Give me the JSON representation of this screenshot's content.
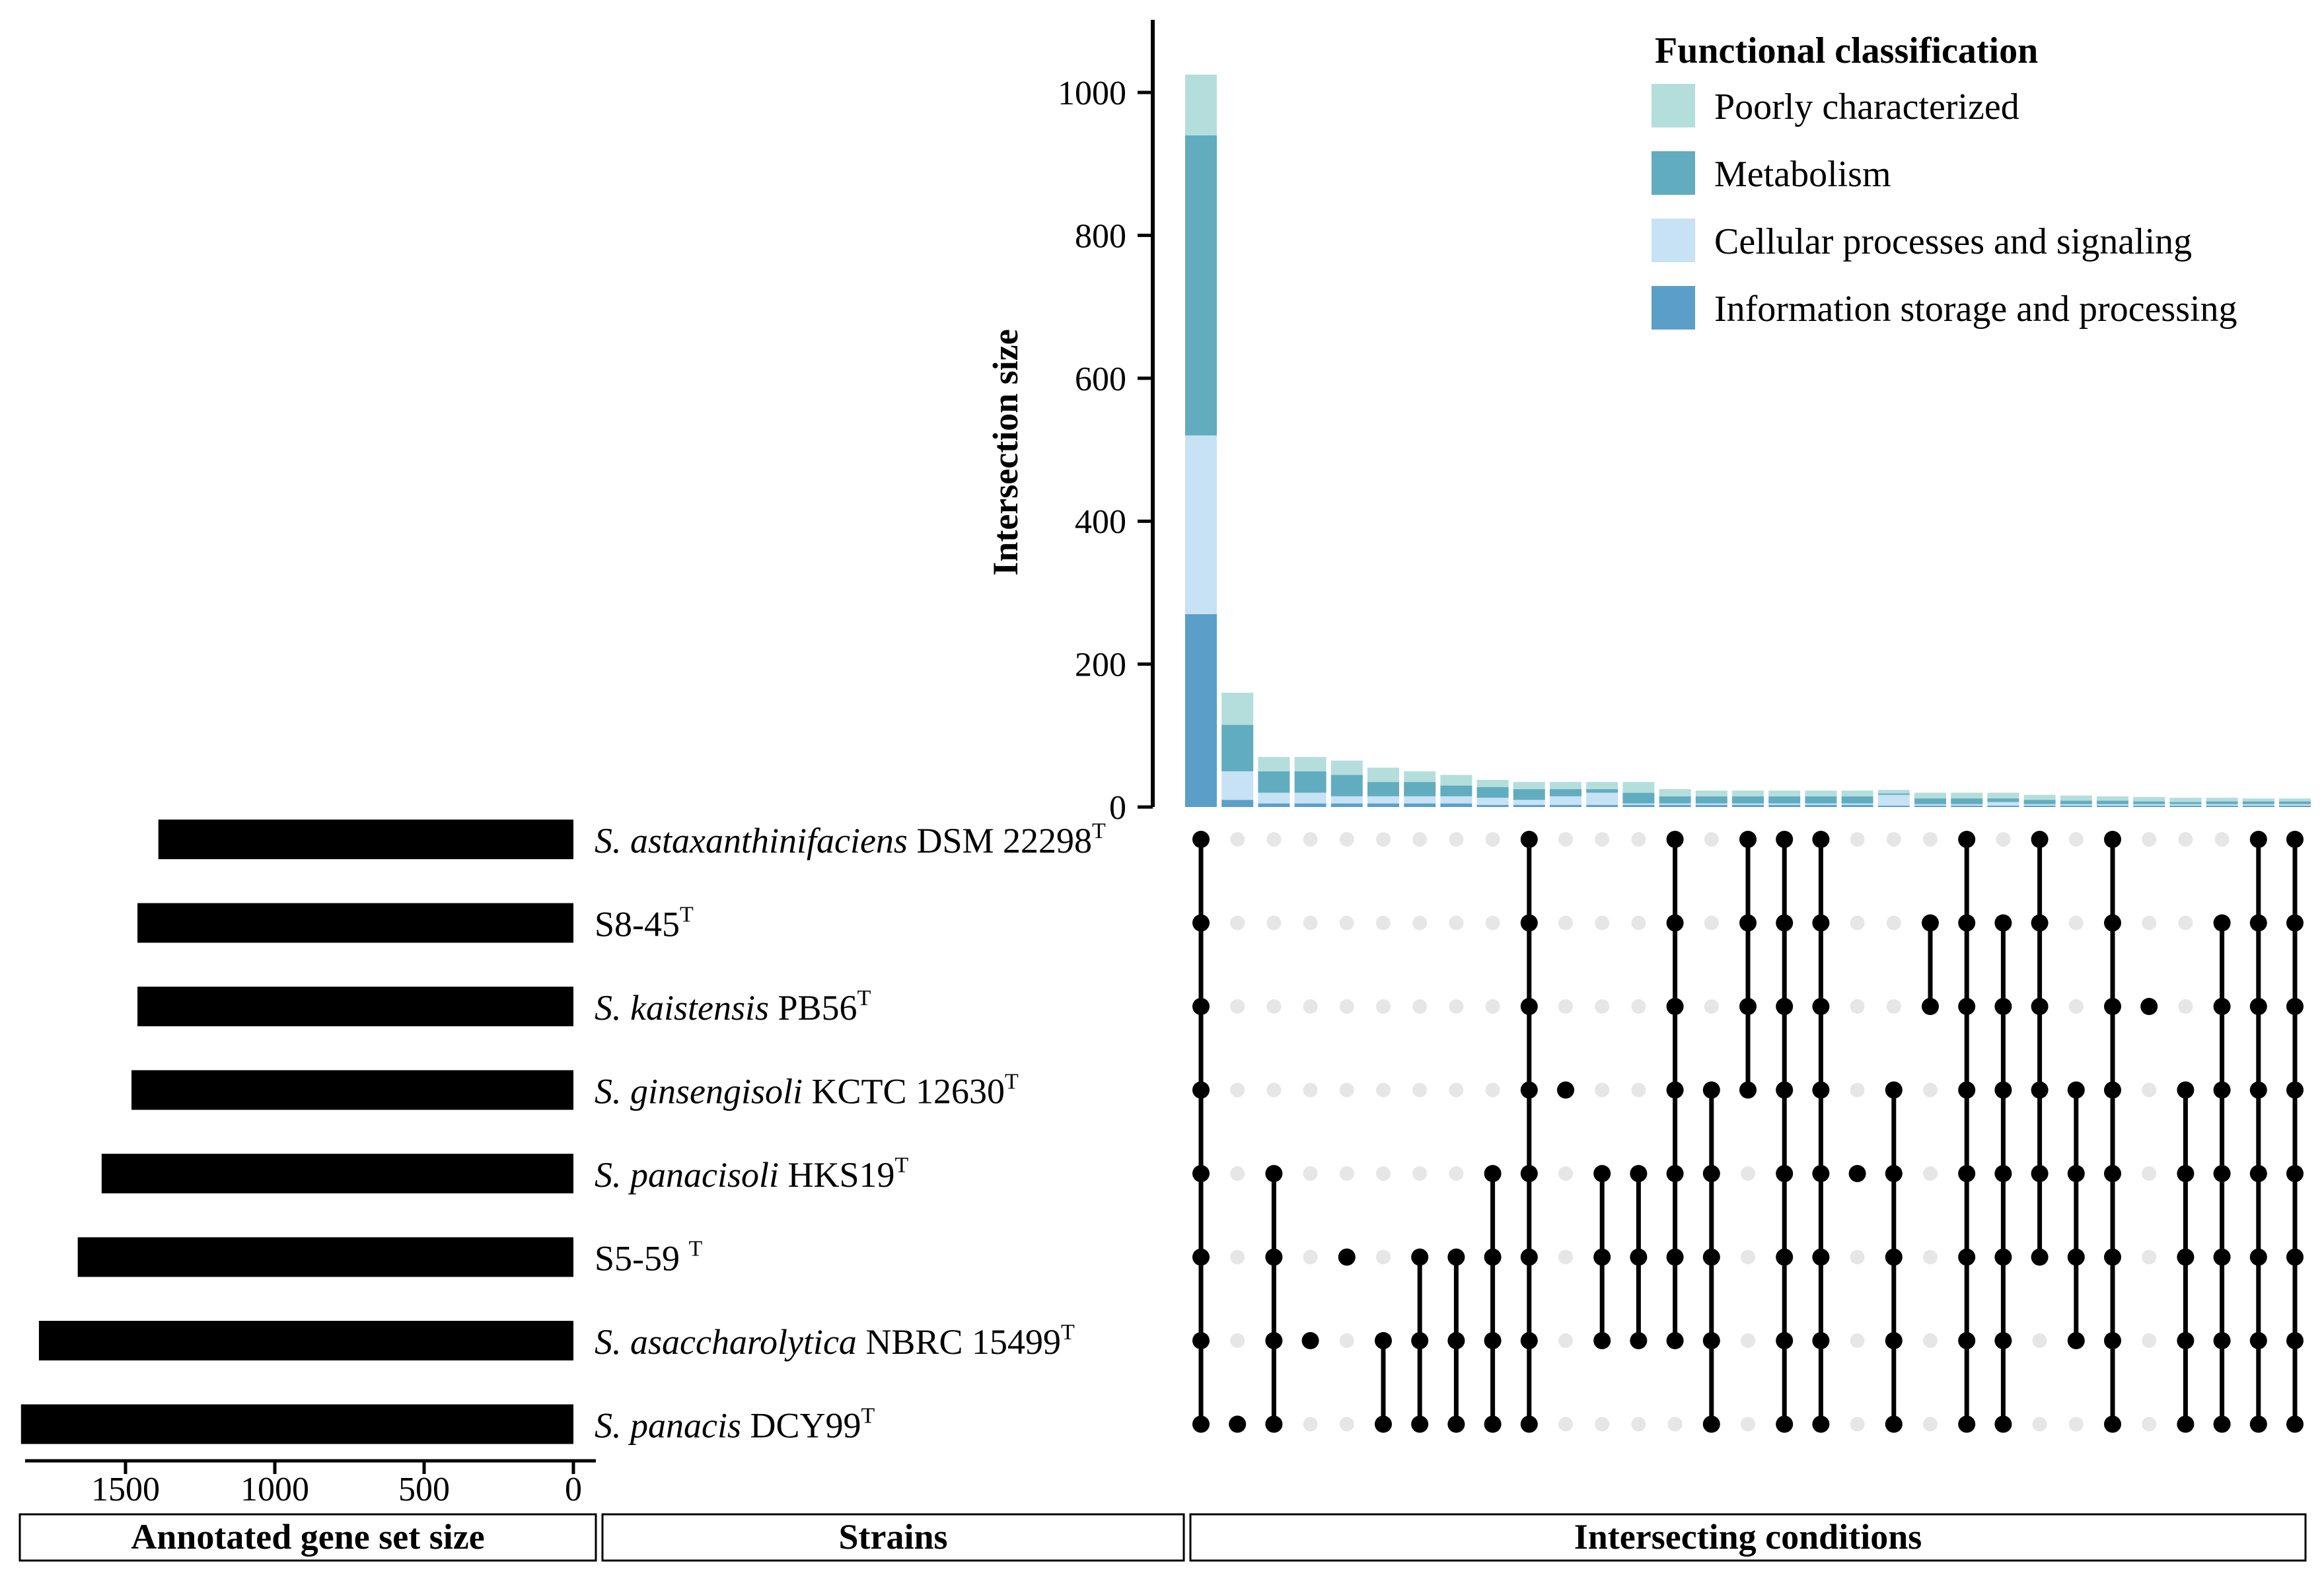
{
  "chart_data": {
    "type": "upset",
    "title": "",
    "legend": {
      "title": "Functional classification",
      "position": "top-right",
      "items": [
        {
          "label": "Poorly characterized",
          "color": "#b4dedb"
        },
        {
          "label": "Metabolism",
          "color": "#62acbf"
        },
        {
          "label": "Cellular processes and signaling",
          "color": "#c7e2f5"
        },
        {
          "label": "Information storage and processing",
          "color": "#5b9fc9"
        }
      ]
    },
    "intersection_axis": {
      "label": "Intersection size",
      "ylim": [
        0,
        1100
      ],
      "ticks": [
        0,
        200,
        400,
        600,
        800,
        1000
      ]
    },
    "set_size_axis": {
      "label": "Annotated gene set size",
      "xlim": [
        0,
        1850
      ],
      "ticks": [
        1500,
        1000,
        500,
        0
      ]
    },
    "panel_labels": {
      "left": "Annotated gene set size",
      "middle": "Strains",
      "right": "Intersecting conditions"
    },
    "sets": [
      {
        "species": "S. astaxanthinifaciens",
        "strain": "DSM 22298",
        "sup": "T",
        "size": 1390
      },
      {
        "species": "",
        "strain": "S8-45",
        "sup": "T",
        "size": 1460
      },
      {
        "species": "S. kaistensis",
        "strain": "PB56",
        "sup": "T",
        "size": 1460
      },
      {
        "species": "S. ginsengisoli",
        "strain": "KCTC 12630",
        "sup": "T",
        "size": 1480
      },
      {
        "species": "S. panacisoli",
        "strain": "HKS19",
        "sup": "T",
        "size": 1580
      },
      {
        "species": "",
        "strain": "S5-59 ",
        "sup": "T",
        "size": 1660
      },
      {
        "species": "S. asaccharolytica",
        "strain": "NBRC 15499",
        "sup": "T",
        "size": 1790
      },
      {
        "species": "S. panacis",
        "strain": "DCY99",
        "sup": "T",
        "size": 1850
      }
    ],
    "series_order": [
      "Information storage and processing",
      "Cellular processes and signaling",
      "Metabolism",
      "Poorly characterized"
    ],
    "intersections": [
      {
        "sets": [
          0,
          1,
          2,
          3,
          4,
          5,
          6,
          7
        ],
        "values": [
          270,
          250,
          420,
          85
        ]
      },
      {
        "sets": [
          7
        ],
        "values": [
          10,
          40,
          65,
          45
        ]
      },
      {
        "sets": [
          4,
          5,
          6,
          7
        ],
        "values": [
          5,
          15,
          30,
          20
        ]
      },
      {
        "sets": [
          6
        ],
        "values": [
          5,
          15,
          30,
          20
        ]
      },
      {
        "sets": [
          5
        ],
        "values": [
          5,
          10,
          30,
          20
        ]
      },
      {
        "sets": [
          6,
          7
        ],
        "values": [
          5,
          10,
          20,
          20
        ]
      },
      {
        "sets": [
          5,
          6,
          7
        ],
        "values": [
          5,
          10,
          20,
          15
        ]
      },
      {
        "sets": [
          5,
          6,
          7
        ],
        "values": [
          5,
          10,
          15,
          15
        ]
      },
      {
        "sets": [
          4,
          5,
          6,
          7
        ],
        "values": [
          3,
          10,
          15,
          10
        ]
      },
      {
        "sets": [
          0,
          1,
          2,
          3,
          4,
          5,
          6,
          7
        ],
        "values": [
          3,
          7,
          15,
          10
        ]
      },
      {
        "sets": [
          3
        ],
        "values": [
          3,
          12,
          10,
          10
        ]
      },
      {
        "sets": [
          4,
          5,
          6
        ],
        "values": [
          3,
          17,
          5,
          10
        ]
      },
      {
        "sets": [
          4,
          5,
          6
        ],
        "values": [
          3,
          2,
          15,
          15
        ]
      },
      {
        "sets": [
          0,
          1,
          2,
          3,
          4,
          5,
          6
        ],
        "values": [
          3,
          2,
          10,
          10
        ]
      },
      {
        "sets": [
          3,
          4,
          5,
          6,
          7
        ],
        "values": [
          3,
          2,
          10,
          8
        ]
      },
      {
        "sets": [
          0,
          1,
          2,
          3
        ],
        "values": [
          3,
          2,
          10,
          8
        ]
      },
      {
        "sets": [
          0,
          1,
          2,
          3,
          4,
          5,
          6,
          7
        ],
        "values": [
          3,
          2,
          10,
          8
        ]
      },
      {
        "sets": [
          0,
          1,
          2,
          3,
          4,
          5,
          6,
          7
        ],
        "values": [
          3,
          2,
          10,
          8
        ]
      },
      {
        "sets": [
          4
        ],
        "values": [
          3,
          2,
          10,
          8
        ]
      },
      {
        "sets": [
          3,
          4,
          5,
          6,
          7
        ],
        "values": [
          2,
          15,
          2,
          5
        ]
      },
      {
        "sets": [
          1,
          2
        ],
        "values": [
          2,
          2,
          8,
          8
        ]
      },
      {
        "sets": [
          0,
          1,
          2,
          3,
          4,
          5,
          6,
          7
        ],
        "values": [
          2,
          2,
          8,
          8
        ]
      },
      {
        "sets": [
          1,
          2,
          3,
          4,
          5,
          6,
          7
        ],
        "values": [
          2,
          5,
          5,
          8
        ]
      },
      {
        "sets": [
          0,
          1,
          2,
          3,
          4,
          5
        ],
        "values": [
          2,
          2,
          6,
          7
        ]
      },
      {
        "sets": [
          3,
          4,
          5,
          6
        ],
        "values": [
          2,
          2,
          5,
          7
        ]
      },
      {
        "sets": [
          0,
          1,
          2,
          3,
          4,
          5,
          6,
          7
        ],
        "values": [
          2,
          2,
          5,
          6
        ]
      },
      {
        "sets": [
          2
        ],
        "values": [
          2,
          2,
          4,
          6
        ]
      },
      {
        "sets": [
          3,
          4,
          5,
          6,
          7
        ],
        "values": [
          2,
          2,
          3,
          6
        ]
      },
      {
        "sets": [
          1,
          2,
          3,
          4,
          5,
          6,
          7
        ],
        "values": [
          2,
          2,
          4,
          5
        ]
      },
      {
        "sets": [
          0,
          1,
          2,
          3,
          4,
          5,
          6,
          7
        ],
        "values": [
          2,
          2,
          4,
          4
        ]
      },
      {
        "sets": [
          0,
          1,
          2,
          3,
          4,
          5,
          6,
          7
        ],
        "values": [
          2,
          2,
          4,
          4
        ]
      }
    ]
  }
}
